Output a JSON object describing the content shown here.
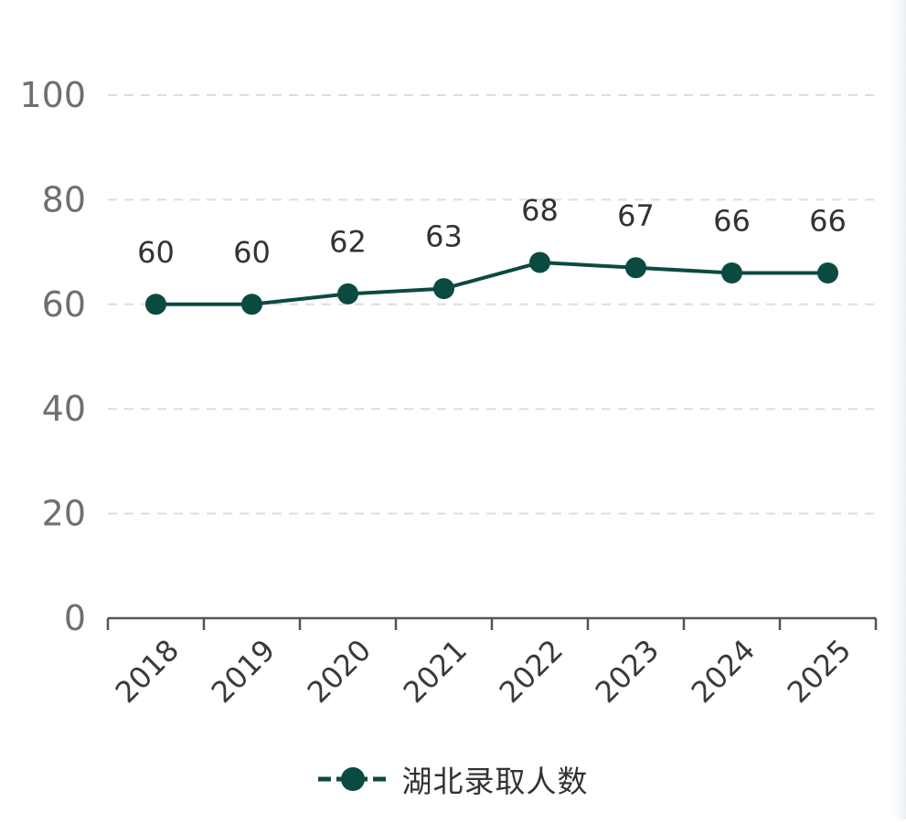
{
  "chart_data": {
    "type": "line",
    "title": "",
    "xlabel": "",
    "ylabel": "",
    "categories": [
      "2018",
      "2019",
      "2020",
      "2021",
      "2022",
      "2023",
      "2024",
      "2025"
    ],
    "series": [
      {
        "name": "湖北录取人数",
        "values": [
          60,
          60,
          62,
          63,
          68,
          67,
          66,
          66
        ],
        "color": "#0b4a40"
      }
    ],
    "ylim": [
      0,
      100
    ],
    "yticks": [
      "0",
      "20",
      "40",
      "60",
      "80",
      "100"
    ],
    "grid": true,
    "legend_position": "bottom",
    "data_labels": true
  },
  "colors": {
    "series": "#0b4a40",
    "axis": "#555555",
    "tick_label": "#6f6f6f",
    "grid": "#dddddd",
    "data_label": "#333333"
  }
}
